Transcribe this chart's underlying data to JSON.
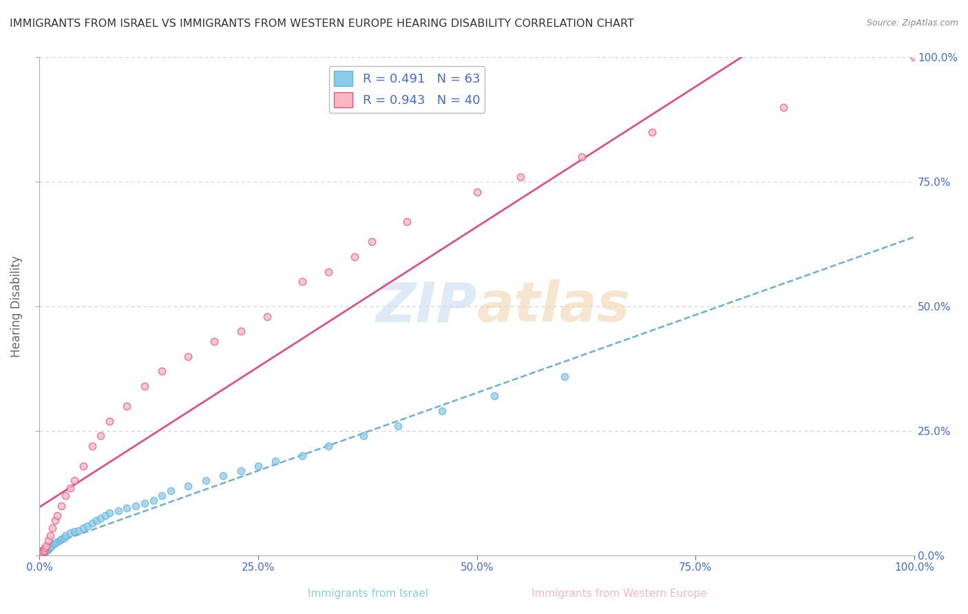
{
  "title": "IMMIGRANTS FROM ISRAEL VS IMMIGRANTS FROM WESTERN EUROPE HEARING DISABILITY CORRELATION CHART",
  "source": "Source: ZipAtlas.com",
  "ylabel": "Hearing Disability",
  "xlim": [
    0,
    100
  ],
  "ylim": [
    0,
    100
  ],
  "legend_label1": "R = 0.491   N = 63",
  "legend_label2": "R = 0.943   N = 40",
  "color_israel": "#87CEEB",
  "color_israel_line": "#6baed6",
  "color_western": "#FFB6C1",
  "color_western_line": "#e05080",
  "color_axis": "#4169E1",
  "watermark": "ZIPatlas",
  "background": "#FFFFFF",
  "grid_color": "#CCCCCC",
  "israel_x": [
    0.05,
    0.08,
    0.1,
    0.12,
    0.15,
    0.18,
    0.2,
    0.22,
    0.25,
    0.28,
    0.3,
    0.32,
    0.35,
    0.4,
    0.45,
    0.5,
    0.55,
    0.6,
    0.65,
    0.7,
    0.8,
    0.9,
    1.0,
    1.1,
    1.2,
    1.4,
    1.6,
    1.8,
    2.0,
    2.3,
    2.5,
    2.8,
    3.0,
    3.5,
    4.0,
    4.5,
    5.0,
    5.5,
    6.0,
    6.5,
    7.0,
    7.5,
    8.0,
    9.0,
    10.0,
    11.0,
    12.0,
    13.0,
    14.0,
    15.0,
    17.0,
    19.0,
    21.0,
    23.0,
    25.0,
    27.0,
    30.0,
    33.0,
    37.0,
    41.0,
    46.0,
    52.0,
    60.0
  ],
  "israel_y": [
    0.05,
    0.08,
    0.1,
    0.12,
    0.15,
    0.18,
    0.2,
    0.25,
    0.28,
    0.3,
    0.35,
    0.4,
    0.45,
    0.5,
    0.55,
    0.6,
    0.65,
    0.7,
    0.8,
    0.9,
    1.0,
    1.1,
    1.3,
    1.5,
    1.7,
    2.0,
    2.3,
    2.5,
    2.8,
    3.0,
    3.3,
    3.5,
    4.0,
    4.5,
    4.8,
    5.0,
    5.5,
    6.0,
    6.5,
    7.0,
    7.5,
    8.0,
    8.5,
    9.0,
    9.5,
    10.0,
    10.5,
    11.0,
    12.0,
    13.0,
    14.0,
    15.0,
    16.0,
    17.0,
    18.0,
    19.0,
    20.0,
    22.0,
    24.0,
    26.0,
    29.0,
    32.0,
    36.0
  ],
  "western_x": [
    0.05,
    0.1,
    0.15,
    0.2,
    0.3,
    0.4,
    0.5,
    0.6,
    0.8,
    1.0,
    1.2,
    1.5,
    1.8,
    2.0,
    2.5,
    3.0,
    3.5,
    4.0,
    5.0,
    6.0,
    7.0,
    8.0,
    10.0,
    12.0,
    14.0,
    17.0,
    20.0,
    23.0,
    26.0,
    30.0,
    33.0,
    36.0,
    38.0,
    42.0,
    50.0,
    55.0,
    62.0,
    70.0,
    85.0,
    100.0
  ],
  "western_y": [
    0.05,
    0.1,
    0.2,
    0.3,
    0.5,
    0.8,
    1.0,
    1.5,
    2.0,
    3.0,
    4.0,
    5.5,
    7.0,
    8.0,
    10.0,
    12.0,
    13.5,
    15.0,
    18.0,
    22.0,
    24.0,
    27.0,
    30.0,
    34.0,
    37.0,
    40.0,
    43.0,
    45.0,
    48.0,
    55.0,
    57.0,
    60.0,
    63.0,
    67.0,
    73.0,
    76.0,
    80.0,
    85.0,
    90.0,
    100.0
  ],
  "israel_regression": [
    0.0,
    45.0
  ],
  "western_regression": [
    0.0,
    100.0
  ]
}
